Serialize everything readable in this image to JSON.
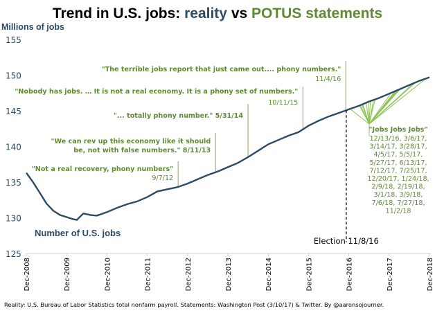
{
  "title": {
    "part1": "Trend in U.S. jobs: ",
    "part2": "reality",
    "part3": " vs ",
    "part4": "POTUS statements"
  },
  "colors": {
    "reality": "#2b4a66",
    "statements": "#5e8a32",
    "fan_lines": "#8cc152",
    "statement_lines": "#a9b27c"
  },
  "chart_data": {
    "type": "line",
    "ylabel": "Millions of jobs",
    "ylim": [
      125,
      155
    ],
    "yticks": [
      125,
      130,
      135,
      140,
      145,
      150,
      155
    ],
    "xticks": [
      "Dec-2008",
      "Dec-2009",
      "Dec-2010",
      "Dec-2011",
      "Dec-2012",
      "Dec-2013",
      "Dec-2014",
      "Dec-2015",
      "Dec-2016",
      "Dec-2017",
      "Dec-2018"
    ],
    "grid": false,
    "series": [
      {
        "name": "Number of U.S. jobs",
        "x": [
          "2008-12",
          "2009-02",
          "2009-04",
          "2009-06",
          "2009-08",
          "2009-10",
          "2009-12",
          "2010-02",
          "2010-03",
          "2010-05",
          "2010-07",
          "2010-09",
          "2010-12",
          "2011-03",
          "2011-06",
          "2011-09",
          "2011-12",
          "2012-03",
          "2012-06",
          "2012-09",
          "2012-12",
          "2013-03",
          "2013-06",
          "2013-09",
          "2013-12",
          "2014-03",
          "2014-06",
          "2014-09",
          "2014-12",
          "2015-03",
          "2015-06",
          "2015-09",
          "2015-12",
          "2016-03",
          "2016-06",
          "2016-09",
          "2016-12",
          "2017-03",
          "2017-06",
          "2017-09",
          "2017-12",
          "2018-03",
          "2018-06",
          "2018-09",
          "2018-12"
        ],
        "values": [
          136.3,
          135.0,
          133.5,
          132.0,
          131.0,
          130.4,
          130.1,
          129.8,
          129.7,
          130.6,
          130.4,
          130.3,
          130.8,
          131.4,
          131.9,
          132.3,
          132.9,
          133.7,
          134.0,
          134.3,
          134.8,
          135.4,
          136.0,
          136.5,
          137.1,
          137.7,
          138.5,
          139.4,
          140.3,
          140.9,
          141.5,
          142.0,
          142.9,
          143.6,
          144.2,
          144.7,
          145.2,
          145.7,
          146.3,
          146.8,
          147.4,
          148.0,
          148.6,
          149.2,
          149.7
        ]
      }
    ],
    "annotations": [
      {
        "lines": [
          "\"Not a real recovery, phony numbers\""
        ],
        "date": "9/7/12"
      },
      {
        "lines": [
          "\"We can rev up this economy like it should",
          "be, not with false numbers.\""
        ],
        "date": "8/11/13"
      },
      {
        "lines": [
          "\"... totally phony number.\""
        ],
        "date": "5/31/14"
      },
      {
        "lines": [
          "\"Nobody has jobs. … It is not a real economy. It is a phony set of numbers.\""
        ],
        "date": "10/11/15"
      },
      {
        "lines": [
          "\"The terrible jobs report that just came out.... phony numbers.\""
        ],
        "date": "11/4/16"
      }
    ],
    "jobs_annotation": {
      "quote": "\"Jobs Jobs Jobs\"",
      "date_lines": [
        "12/13/16, 3/6/17,",
        "3/14/17, 3/28/17,",
        "4/5/17, 5/5/17,",
        "5/27/17, 6/13/17,",
        "7/12/17, 7/25/17,",
        "12/20/17, 1/24/18,",
        "2/9/18, 2/19/18,",
        "3/1/18, 3/9/18,",
        "7/6/18, 7/27/18,",
        "11/2/18"
      ],
      "dates": [
        "12/13/16",
        "3/6/17",
        "3/14/17",
        "3/28/17",
        "4/5/17",
        "5/5/17",
        "5/27/17",
        "6/13/17",
        "7/12/17",
        "7/25/17",
        "12/20/17",
        "1/24/18",
        "2/9/18",
        "2/19/18",
        "3/1/18",
        "3/9/18",
        "7/6/18",
        "7/27/18",
        "11/2/18"
      ]
    },
    "election": {
      "label": "Election 11/8/16",
      "date": "11/8/16"
    }
  },
  "source": "Reality: U.S. Bureau of Labor Statistics total nonfarm payroll. Statements: Washington Post (3/10/17) & Twitter. By @aaronsojourner."
}
